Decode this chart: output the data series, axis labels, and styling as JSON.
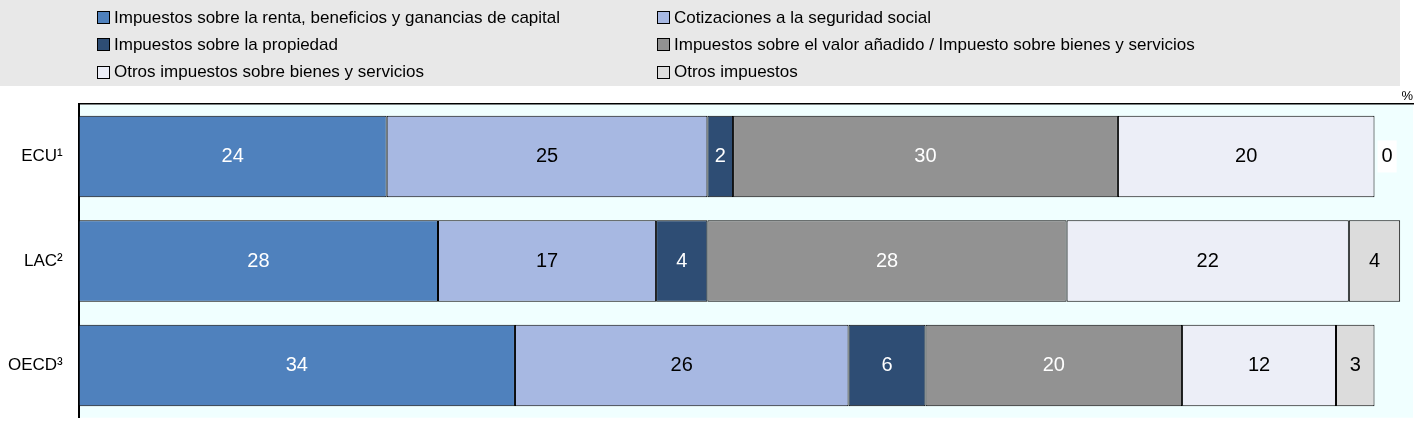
{
  "chart_data": {
    "type": "bar",
    "orientation": "horizontal",
    "stacked": true,
    "categories": [
      "ECU¹",
      "LAC²",
      "OECD³"
    ],
    "xlabel": "%",
    "xlim": [
      0,
      104
    ],
    "tick_labels": "y",
    "grid": false,
    "legend": "top",
    "data_labels": true,
    "series": [
      {
        "name": "Impuestos sobre la renta, beneficios y ganancias de capital",
        "color": "#4f81bd",
        "values": [
          24,
          28,
          34
        ]
      },
      {
        "name": "Cotizaciones a la seguridad social",
        "color": "#a7b8e2",
        "values": [
          25,
          17,
          26
        ]
      },
      {
        "name": "Impuestos sobre la propiedad",
        "color": "#2e4d74",
        "values": [
          2,
          4,
          6
        ]
      },
      {
        "name": "Impuestos sobre el valor añadido / Impuesto sobre bienes y servicios",
        "color": "#929292",
        "values": [
          30,
          28,
          20
        ]
      },
      {
        "name": "Otros impuestos sobre bienes y servicios",
        "color": "#eceef7",
        "values": [
          20,
          22,
          12
        ]
      },
      {
        "name": "Otros impuestos",
        "color": "#dcdcdc",
        "values": [
          0,
          4,
          3
        ]
      }
    ]
  }
}
